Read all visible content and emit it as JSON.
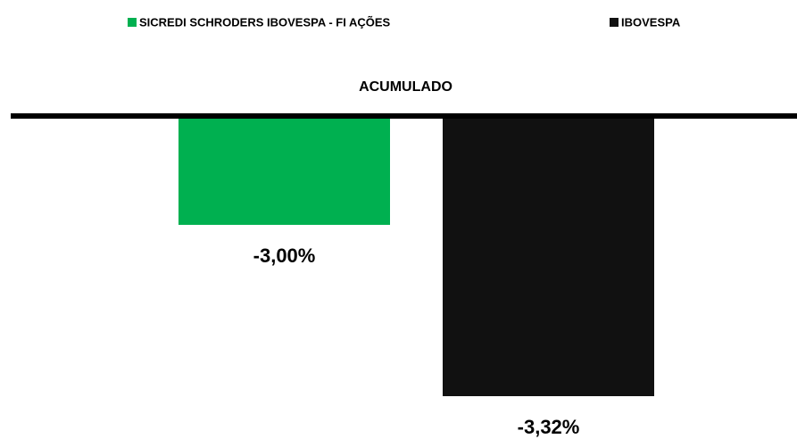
{
  "chart_data": {
    "type": "bar",
    "categories": [
      "ACUMULADO"
    ],
    "series": [
      {
        "name": "SICREDI SCHRODERS IBOVESPA - FI AÇÕES",
        "color": "#00b050",
        "values": [
          -3.0
        ],
        "value_labels": [
          "-3,00%"
        ]
      },
      {
        "name": "IBOVESPA",
        "color": "#111111",
        "values": [
          -3.32
        ],
        "value_labels": [
          "-3,32%"
        ]
      }
    ],
    "ylim": [
      -3.4,
      -2.8
    ]
  }
}
